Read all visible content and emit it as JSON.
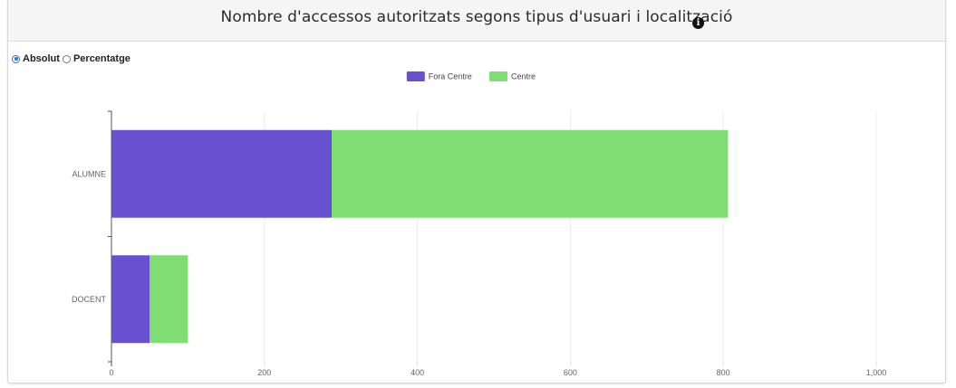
{
  "header": {
    "title": "Nombre d'accessos autoritzats segons tipus d'usuari i localització",
    "info_icon": "info-icon"
  },
  "mode_toggle": {
    "options": [
      {
        "label": "Absolut",
        "checked": true
      },
      {
        "label": "Percentatge",
        "checked": false
      }
    ]
  },
  "chart_data": {
    "type": "bar",
    "orientation": "horizontal",
    "stacked": true,
    "categories": [
      "ALUMNE",
      "DOCENT"
    ],
    "series": [
      {
        "name": "Fora Centre",
        "color": "#6751d1",
        "values": [
          288,
          50
        ]
      },
      {
        "name": "Centre",
        "color": "#7fdd74",
        "values": [
          518,
          50
        ]
      }
    ],
    "xlim": [
      0,
      1000
    ],
    "x_ticks": [
      0,
      200,
      400,
      600,
      800,
      1000
    ],
    "x_tick_labels": [
      "0",
      "200",
      "400",
      "600",
      "800",
      "1,000"
    ],
    "grid": true,
    "legend_position": "top-center"
  }
}
